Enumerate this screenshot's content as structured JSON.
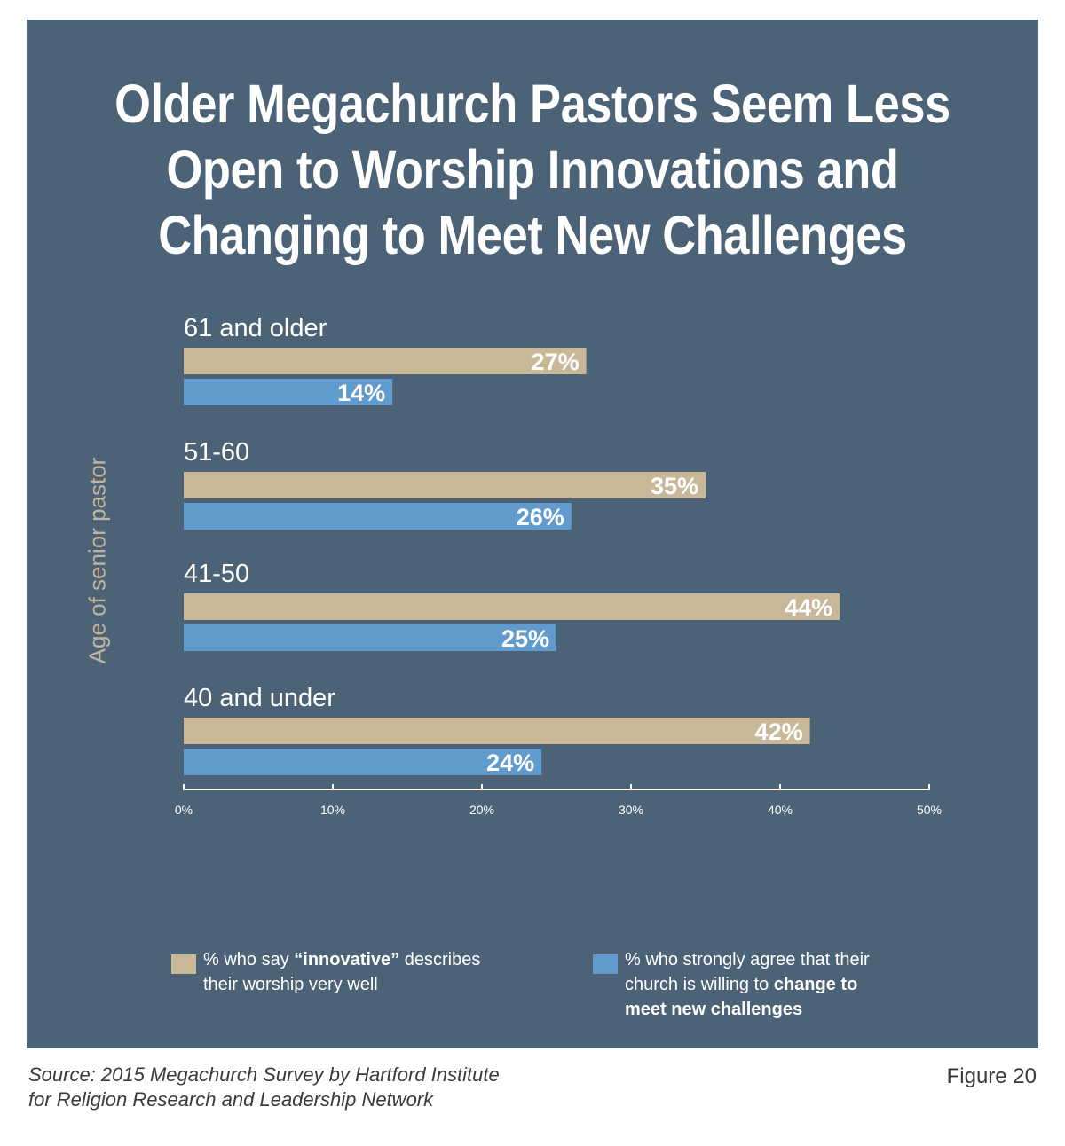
{
  "title_lines": [
    "Older Megachurch Pastors Seem Less",
    "Open to Worship Innovations and",
    "Changing to Meet New Challenges"
  ],
  "colors": {
    "background": "#4c6276",
    "innovative": "#c8b898",
    "change": "#619bcd",
    "ylabel": "#c2b49b"
  },
  "chart_data": {
    "type": "bar",
    "orientation": "horizontal",
    "ylabel": "Age of senior pastor",
    "categories": [
      "61 and older",
      "51-60",
      "41-50",
      "40 and under"
    ],
    "series": [
      {
        "name": "% who say “innovative” describes their worship very well",
        "values": [
          27,
          35,
          44,
          42
        ],
        "labels": [
          "27%",
          "35%",
          "44%",
          "42%"
        ],
        "color": "#c8b898"
      },
      {
        "name": "% who strongly agree that their church is willing to change to meet new challenges",
        "values": [
          14,
          26,
          25,
          24
        ],
        "labels": [
          "14%",
          "26%",
          "25%",
          "24%"
        ],
        "color": "#619bcd"
      }
    ],
    "xlim": [
      0,
      50
    ],
    "xticks": [
      0,
      10,
      20,
      30,
      40,
      50
    ],
    "xtick_labels": [
      "0%",
      "10%",
      "20%",
      "30%",
      "40%",
      "50%"
    ],
    "grid": false,
    "legend_position": "bottom"
  },
  "legend": {
    "innovative": {
      "pre": "% who say ",
      "bold": "“innovative”",
      "post": " describes",
      "line2": "their worship very well"
    },
    "change": {
      "line1": "% who strongly agree that their",
      "pre": "church is willing to ",
      "bold1": "change to",
      "bold2": "meet new challenges"
    }
  },
  "source_lines": [
    "Source: 2015 Megachurch Survey by Hartford Institute",
    "for Religion Research and Leadership Network"
  ],
  "figure_label": "Figure 20"
}
